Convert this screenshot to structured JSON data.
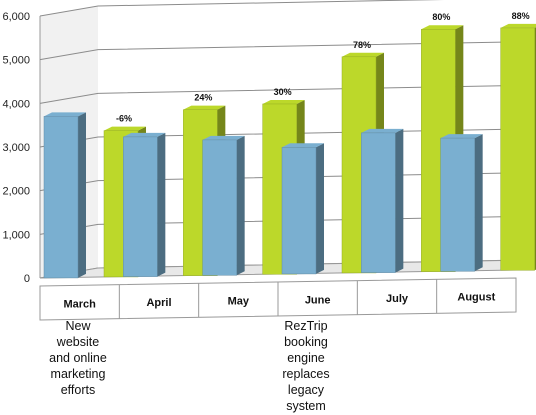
{
  "chart_data": {
    "type": "bar",
    "categories": [
      "March",
      "April",
      "May",
      "June",
      "July",
      "August"
    ],
    "series": [
      {
        "values": [
          3700,
          3200,
          3100,
          2900,
          3200,
          3050
        ],
        "color": "#7aafd0"
      },
      {
        "values": [
          3350,
          3800,
          3900,
          4950,
          5550,
          5550
        ],
        "color": "#bcd82a",
        "labels": [
          "-6%",
          "24%",
          "30%",
          "78%",
          "80%",
          "88%"
        ]
      }
    ],
    "y_ticks": [
      "0",
      "1,000",
      "2,000",
      "3,000",
      "4,000",
      "5,000",
      "6,000"
    ],
    "ylim": [
      0,
      6000
    ],
    "grid": true,
    "annotations": [
      {
        "category": "March",
        "text": [
          "New",
          "website",
          "and online",
          "marketing",
          "efforts"
        ]
      },
      {
        "category": "June",
        "text": [
          "RezTrip",
          "booking",
          "engine",
          "replaces",
          "legacy",
          "system"
        ]
      }
    ]
  }
}
